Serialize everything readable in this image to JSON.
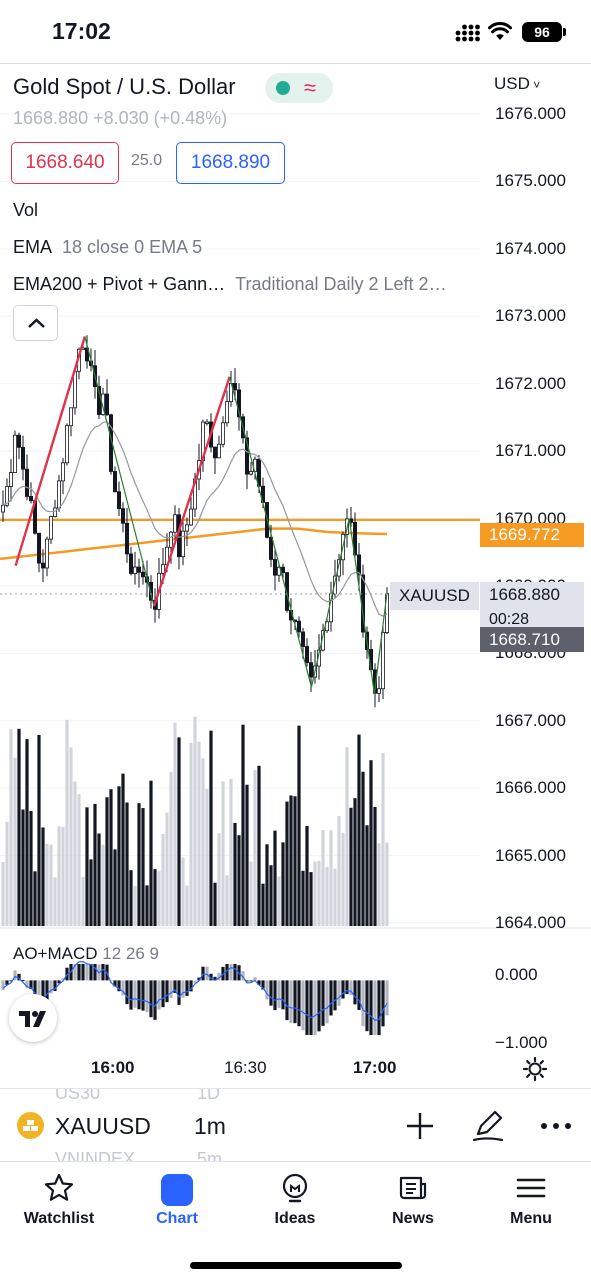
{
  "status_bar": {
    "time": "17:02",
    "battery": "96"
  },
  "header": {
    "title": "Gold Spot / U.S. Dollar",
    "currency": "USD",
    "quote_line": "1668.880  +8.030  (+0.48%)",
    "bid": "1668.640",
    "spread": "25.0",
    "ask": "1668.890"
  },
  "indicators": {
    "vol": "Vol",
    "ema_name": "EMA",
    "ema_params": "18 close 0 EMA 5",
    "combo_name": "EMA200 + Pivot + Gann…",
    "combo_params": "Traditional Daily 2 Left 2…",
    "ao_name": "AO+MACD",
    "ao_params": "12 26 9"
  },
  "price_axis": {
    "labels": [
      "1676.000",
      "1675.000",
      "1674.000",
      "1673.000",
      "1672.000",
      "1671.000",
      "1670.000",
      "1669.000",
      "1668.000",
      "1667.000",
      "1666.000",
      "1665.000",
      "1664.000"
    ],
    "ema200_value": "1669.772",
    "last_price": "1668.880",
    "countdown": "00:28",
    "bid_line": "1668.710",
    "symbol_tag": "XAUUSD"
  },
  "oscillator_axis": {
    "labels": [
      "0.000",
      "−1.000"
    ]
  },
  "time_axis": {
    "labels": [
      "16:00",
      "16:30",
      "17:00"
    ]
  },
  "symbol_bar": {
    "symbol": "XAUUSD",
    "interval": "1m",
    "ghost_top": [
      "US30",
      "1D"
    ],
    "ghost_bottom": [
      "VNINDEX",
      "5m"
    ]
  },
  "tabs": [
    {
      "label": "Watchlist",
      "icon": "star-icon"
    },
    {
      "label": "Chart",
      "icon": "chart-icon"
    },
    {
      "label": "Ideas",
      "icon": "lightbulb-icon"
    },
    {
      "label": "News",
      "icon": "newspaper-icon"
    },
    {
      "label": "Menu",
      "icon": "menu-icon"
    }
  ],
  "colors": {
    "bid": "#e0334b",
    "ask": "#2962ff",
    "ema200": "#f59a23",
    "active_tab": "#2962ff",
    "candle": "#131722",
    "zigzag_up": "#e0334b",
    "zigzag": "#2e7d32"
  },
  "chart_data": {
    "type": "candlestick",
    "symbol": "XAUUSD",
    "interval": "1m",
    "ylim": [
      1664.0,
      1676.0
    ],
    "x_ticks": [
      "16:00",
      "16:30",
      "17:00"
    ],
    "price_path": [
      1670.2,
      1670.6,
      1671.4,
      1670.8,
      1670.4,
      1669.8,
      1669.2,
      1669.6,
      1670.2,
      1670.6,
      1671.2,
      1671.9,
      1672.5,
      1672.7,
      1672.1,
      1671.6,
      1671.9,
      1670.9,
      1670.3,
      1669.9,
      1669.4,
      1669.1,
      1669.3,
      1669.0,
      1668.7,
      1669.2,
      1669.6,
      1670.1,
      1669.5,
      1669.8,
      1670.3,
      1670.8,
      1671.5,
      1671.2,
      1670.9,
      1671.6,
      1672.1,
      1671.8,
      1671.1,
      1670.6,
      1670.9,
      1670.3,
      1669.7,
      1669.2,
      1669.4,
      1668.8,
      1668.5,
      1668.2,
      1667.8,
      1667.5,
      1667.9,
      1668.4,
      1668.9,
      1669.3,
      1669.8,
      1670.0,
      1669.5,
      1668.6,
      1668.0,
      1667.4,
      1667.7,
      1668.9
    ],
    "ema200": [
      1669.4,
      1669.45,
      1669.5,
      1669.55,
      1669.6,
      1669.65,
      1669.7,
      1669.75,
      1669.8,
      1669.85,
      1669.85,
      1669.8,
      1669.78,
      1669.77
    ],
    "ao_macd_ylim": [
      -1.0,
      0.3
    ]
  }
}
